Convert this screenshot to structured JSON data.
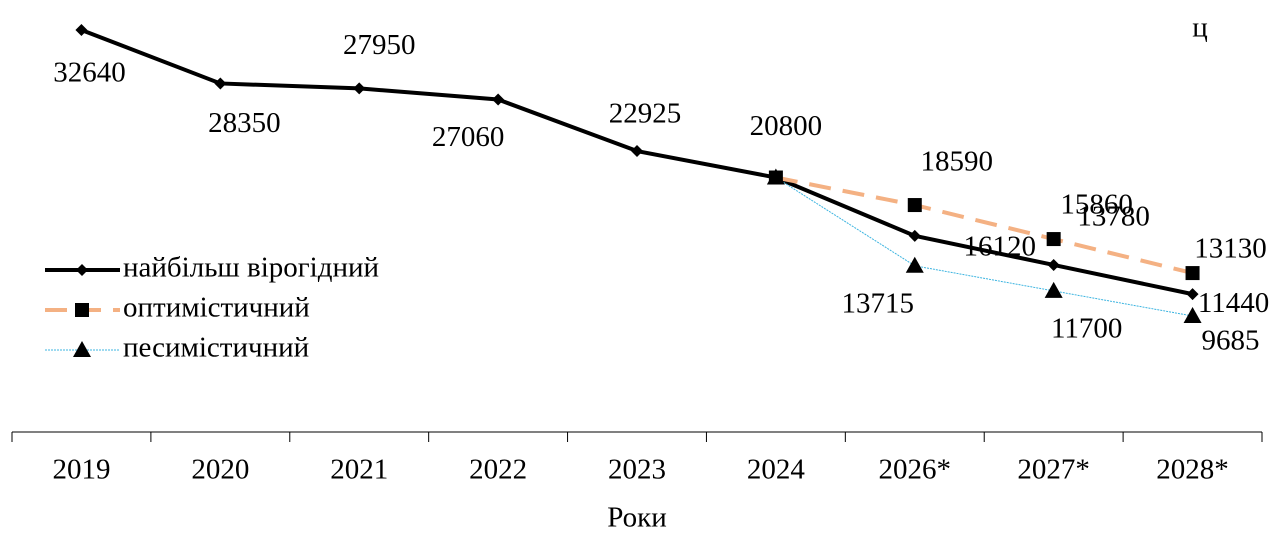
{
  "chart_data": {
    "type": "line",
    "unit_label": "ц",
    "x_label": "Роки",
    "categories": [
      "2019",
      "2020",
      "2021",
      "2022",
      "2023",
      "2024",
      "2026*",
      "2027*",
      "2028*"
    ],
    "series": [
      {
        "name": "найбільш вірогідний",
        "color": "#000000",
        "marker": "diamond",
        "values": [
          32640,
          28350,
          27950,
          27060,
          22925,
          20800,
          16120,
          13780,
          11440
        ]
      },
      {
        "name": "оптимістичний",
        "color": "#f4b183",
        "marker": "square",
        "values": [
          null,
          null,
          null,
          null,
          null,
          20800,
          18590,
          15860,
          13130
        ]
      },
      {
        "name": "песимістичний",
        "color": "#3cb4e0",
        "marker": "triangle",
        "values": [
          null,
          null,
          null,
          null,
          null,
          20800,
          13715,
          11700,
          9685
        ]
      }
    ],
    "legend": "left"
  }
}
